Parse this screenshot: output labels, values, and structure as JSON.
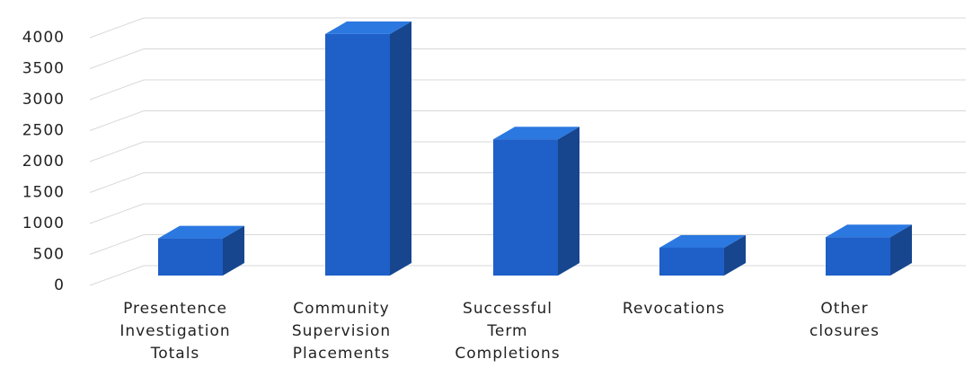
{
  "chart_data": {
    "type": "bar3d",
    "categories": [
      "Presentence Investigation Totals",
      "Community Supervision Placements",
      "Successful Term Completions",
      "Revocations",
      "Other closures"
    ],
    "values": [
      600,
      3900,
      2200,
      450,
      620
    ],
    "color": "#1f5fc8",
    "ylim": [
      0,
      4000
    ],
    "yticks": [
      0,
      500,
      1000,
      1500,
      2000,
      2500,
      3000,
      3500,
      4000
    ],
    "grid": true
  }
}
